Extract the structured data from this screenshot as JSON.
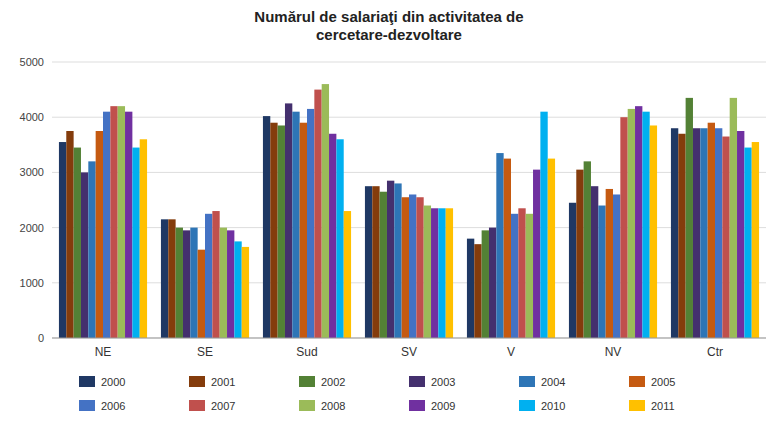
{
  "chart_data": {
    "type": "bar",
    "title": "Numărul de salariaţi din activitatea de\ncercetare-dezvoltare",
    "categories": [
      "NE",
      "SE",
      "Sud",
      "SV",
      "V",
      "NV",
      "Ctr"
    ],
    "series": [
      {
        "name": "2000",
        "color": "#1F3864",
        "values": [
          3550,
          2150,
          4020,
          2750,
          1800,
          2450,
          3800
        ]
      },
      {
        "name": "2001",
        "color": "#843C0C",
        "values": [
          3750,
          2150,
          3900,
          2750,
          1700,
          3050,
          3700
        ]
      },
      {
        "name": "2002",
        "color": "#538135",
        "values": [
          3450,
          2000,
          3850,
          2650,
          1950,
          3200,
          4350
        ]
      },
      {
        "name": "2003",
        "color": "#44306e",
        "values": [
          3000,
          1950,
          4250,
          2850,
          2000,
          2750,
          3800
        ]
      },
      {
        "name": "2004",
        "color": "#2E75B6",
        "values": [
          3200,
          2000,
          4100,
          2800,
          3350,
          2400,
          3800
        ]
      },
      {
        "name": "2005",
        "color": "#C55A11",
        "values": [
          3750,
          1600,
          3900,
          2550,
          3250,
          2700,
          3900
        ]
      },
      {
        "name": "2006",
        "color": "#4472C4",
        "values": [
          4100,
          2250,
          4150,
          2600,
          2250,
          2600,
          3800
        ]
      },
      {
        "name": "2007",
        "color": "#C0504D",
        "values": [
          4200,
          2300,
          4500,
          2550,
          2350,
          4000,
          3650
        ]
      },
      {
        "name": "2008",
        "color": "#9BBB59",
        "values": [
          4200,
          2000,
          4600,
          2400,
          2250,
          4150,
          4350
        ]
      },
      {
        "name": "2009",
        "color": "#7030A0",
        "values": [
          4100,
          1950,
          3700,
          2350,
          3050,
          4200,
          3750
        ]
      },
      {
        "name": "2010",
        "color": "#00B0F0",
        "values": [
          3450,
          1750,
          3600,
          2350,
          4100,
          4100,
          3450
        ]
      },
      {
        "name": "2011",
        "color": "#FFC000",
        "values": [
          3600,
          1650,
          2300,
          2350,
          3250,
          3850,
          3550
        ]
      }
    ],
    "ylim": [
      0,
      5000
    ],
    "yticks": [
      0,
      1000,
      2000,
      3000,
      4000,
      5000
    ],
    "grid": true,
    "legend": "bottom"
  }
}
